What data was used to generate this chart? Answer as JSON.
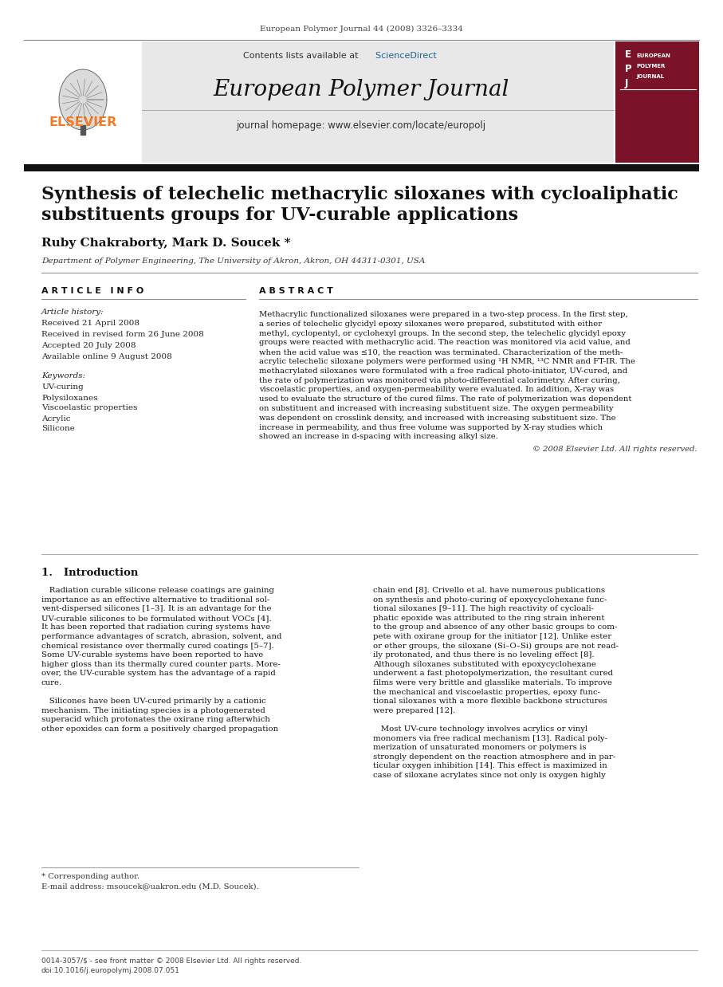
{
  "page_title": "European Polymer Journal 44 (2008) 3326–3334",
  "journal_name": "European Polymer Journal",
  "journal_homepage": "journal homepage: www.elsevier.com/locate/europolj",
  "contents_line": "Contents lists available at ScienceDirect",
  "sciencedirect_color": "#1a6496",
  "elsevier_color": "#F47920",
  "article_title_line1": "Synthesis of telechelic methacrylic siloxanes with cycloaliphatic",
  "article_title_line2": "substituents groups for UV-curable applications",
  "authors": "Ruby Chakraborty, Mark D. Soucek *",
  "affiliation": "Department of Polymer Engineering, The University of Akron, Akron, OH 44311-0301, USA",
  "article_info_header": "A R T I C L E   I N F O",
  "abstract_header": "A B S T R A C T",
  "article_history_label": "Article history:",
  "received": "Received 21 April 2008",
  "revised": "Received in revised form 26 June 2008",
  "accepted": "Accepted 20 July 2008",
  "available": "Available online 9 August 2008",
  "keywords_label": "Keywords:",
  "keywords": [
    "UV-curing",
    "Polysiloxanes",
    "Viscoelastic properties",
    "Acrylic",
    "Silicone"
  ],
  "abstract_lines": [
    "Methacrylic functionalized siloxanes were prepared in a two-step process. In the first step,",
    "a series of telechelic glycidyl epoxy siloxanes were prepared, substituted with either",
    "methyl, cyclopentyl, or cyclohexyl groups. In the second step, the telechelic glycidyl epoxy",
    "groups were reacted with methacrylic acid. The reaction was monitored via acid value, and",
    "when the acid value was ≤10, the reaction was terminated. Characterization of the meth-",
    "acrylic telechelic siloxane polymers were performed using ¹H NMR, ¹³C NMR and FT-IR. The",
    "methacrylated siloxanes were formulated with a free radical photo-initiator, UV-cured, and",
    "the rate of polymerization was monitored via photo-differential calorimetry. After curing,",
    "viscoelastic properties, and oxygen-permeability were evaluated. In addition, X-ray was",
    "used to evaluate the structure of the cured films. The rate of polymerization was dependent",
    "on substituent and increased with increasing substituent size. The oxygen permeability",
    "was dependent on crosslink density, and increased with increasing substituent size. The",
    "increase in permeability, and thus free volume was supported by X-ray studies which",
    "showed an increase in d-spacing with increasing alkyl size."
  ],
  "copyright": "© 2008 Elsevier Ltd. All rights reserved.",
  "intro_header": "1.   Introduction",
  "intro_col1_lines": [
    "   Radiation curable silicone release coatings are gaining",
    "importance as an effective alternative to traditional sol-",
    "vent-dispersed silicones [1–3]. It is an advantage for the",
    "UV-curable silicones to be formulated without VOCs [4].",
    "It has been reported that radiation curing systems have",
    "performance advantages of scratch, abrasion, solvent, and",
    "chemical resistance over thermally cured coatings [5–7].",
    "Some UV-curable systems have been reported to have",
    "higher gloss than its thermally cured counter parts. More-",
    "over, the UV-curable system has the advantage of a rapid",
    "cure.",
    "",
    "   Silicones have been UV-cured primarily by a cationic",
    "mechanism. The initiating species is a photogenerated",
    "superacid which protonates the oxirane ring afterwhich",
    "other epoxides can form a positively charged propagation"
  ],
  "intro_col2_lines": [
    "chain end [8]. Crivello et al. have numerous publications",
    "on synthesis and photo-curing of epoxycyclohexane func-",
    "tional siloxanes [9–11]. The high reactivity of cycloali-",
    "phatic epoxide was attributed to the ring strain inherent",
    "to the group and absence of any other basic groups to com-",
    "pete with oxirane group for the initiator [12]. Unlike ester",
    "or ether groups, the siloxane (Si–O–Si) groups are not read-",
    "ily protonated, and thus there is no leveling effect [8].",
    "Although siloxanes substituted with epoxycyclohexane",
    "underwent a fast photopolymerization, the resultant cured",
    "films were very brittle and glasslike materials. To improve",
    "the mechanical and viscoelastic properties, epoxy func-",
    "tional siloxanes with a more flexible backbone structures",
    "were prepared [12].",
    "",
    "   Most UV-cure technology involves acrylics or vinyl",
    "monomers via free radical mechanism [13]. Radical poly-",
    "merization of unsaturated monomers or polymers is",
    "strongly dependent on the reaction atmosphere and in par-",
    "ticular oxygen inhibition [14]. This effect is maximized in",
    "case of siloxane acrylates since not only is oxygen highly"
  ],
  "footnote_star": "* Corresponding author.",
  "footnote_email": "E-mail address: msoucek@uakron.edu (M.D. Soucek).",
  "footer_line1": "0014-3057/$ - see front matter © 2008 Elsevier Ltd. All rights reserved.",
  "footer_line2": "doi:10.1016/j.europolymj.2008.07.051",
  "bg_color": "#ffffff",
  "header_bg": "#e8e8e8",
  "dark_bar_color": "#111111"
}
